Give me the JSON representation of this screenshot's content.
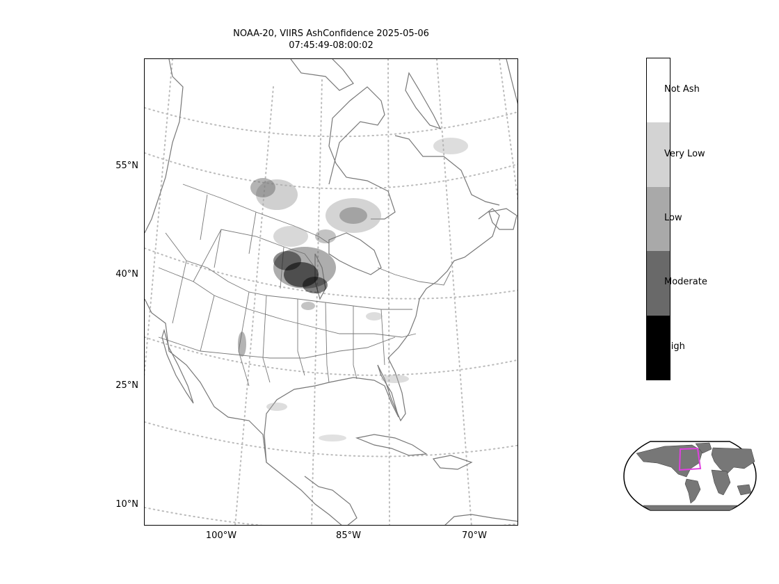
{
  "title": {
    "line1": "NOAA-20, VIIRS AshConfidence 2025-05-06",
    "line2": "07:45:49-08:00:02"
  },
  "latitude_labels": [
    "55°N",
    "40°N",
    "25°N",
    "10°N"
  ],
  "longitude_labels": [
    "100°W",
    "85°W",
    "70°W"
  ],
  "colorbar": {
    "categories": [
      {
        "label": "Not Ash",
        "color": "#ffffff"
      },
      {
        "label": "Very Low",
        "color": "#d3d3d3"
      },
      {
        "label": "Low",
        "color": "#a9a9a9"
      },
      {
        "label": "Moderate",
        "color": "#696969"
      },
      {
        "label": "High",
        "color": "#000000"
      }
    ]
  },
  "colors": {
    "coastline": "#777777",
    "graticule": "#bbbbbb",
    "inset_land": "#777777",
    "inset_box": "#e040e0"
  }
}
